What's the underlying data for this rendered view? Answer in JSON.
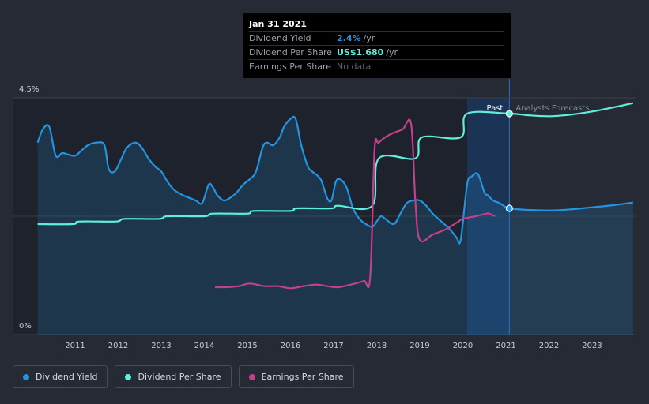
{
  "tooltip": {
    "date": "Jan 31 2021",
    "rows": [
      {
        "label": "Dividend Yield",
        "value": "2.4%",
        "unit": "/yr"
      },
      {
        "label": "Dividend Per Share",
        "value": "US$1.680",
        "unit": "/yr"
      },
      {
        "label": "Earnings Per Share",
        "value": "No data",
        "unit": ""
      }
    ]
  },
  "legend": [
    {
      "label": "Dividend Yield",
      "color": "#2394df"
    },
    {
      "label": "Dividend Per Share",
      "color": "#5ef0dc"
    },
    {
      "label": "Earnings Per Share",
      "color": "#c2418b"
    }
  ],
  "chart_data": {
    "type": "line",
    "ylim": [
      0,
      4.5
    ],
    "y_tick_labels": [
      "4.5%",
      "0%"
    ],
    "x_tick_labels": [
      "2011",
      "2012",
      "2013",
      "2014",
      "2015",
      "2016",
      "2017",
      "2018",
      "2019",
      "2020",
      "2021",
      "2022",
      "2023"
    ],
    "xlim": [
      2010.13,
      2023.95
    ],
    "past_label": "Past",
    "forecast_label": "Analysts Forecasts",
    "forecast_start": 2021.08,
    "shaded_region": [
      2020.1,
      2021.08
    ],
    "series": [
      {
        "name": "Dividend Yield",
        "color": "#2394df",
        "unit": "%",
        "x": [
          2010.13,
          2010.25,
          2010.4,
          2010.55,
          2010.7,
          2010.85,
          2011.0,
          2011.15,
          2011.3,
          2011.5,
          2011.68,
          2011.78,
          2011.92,
          2012.05,
          2012.2,
          2012.4,
          2012.55,
          2012.7,
          2012.85,
          2013.0,
          2013.15,
          2013.3,
          2013.5,
          2013.65,
          2013.8,
          2013.95,
          2014.1,
          2014.2,
          2014.3,
          2014.45,
          2014.6,
          2014.75,
          2014.9,
          2015.05,
          2015.2,
          2015.35,
          2015.45,
          2015.6,
          2015.75,
          2015.85,
          2016.0,
          2016.12,
          2016.25,
          2016.4,
          2016.5,
          2016.7,
          2016.85,
          2016.95,
          2017.05,
          2017.15,
          2017.3,
          2017.45,
          2017.6,
          2017.75,
          2017.9,
          2018.0,
          2018.1,
          2018.2,
          2018.4,
          2018.55,
          2018.7,
          2018.85,
          2019.0,
          2019.15,
          2019.3,
          2019.5,
          2019.7,
          2019.85,
          2019.95,
          2020.1,
          2020.2,
          2020.35,
          2020.5,
          2020.58,
          2020.7,
          2020.85,
          2021.0,
          2021.08,
          2021.5,
          2022.0,
          2022.5,
          2023.0,
          2023.5,
          2023.95
        ],
        "y": [
          3.65,
          3.9,
          3.95,
          3.4,
          3.45,
          3.42,
          3.4,
          3.5,
          3.6,
          3.65,
          3.6,
          3.15,
          3.1,
          3.3,
          3.55,
          3.65,
          3.55,
          3.35,
          3.2,
          3.1,
          2.9,
          2.75,
          2.65,
          2.6,
          2.55,
          2.5,
          2.85,
          2.8,
          2.65,
          2.55,
          2.6,
          2.7,
          2.85,
          2.95,
          3.1,
          3.55,
          3.65,
          3.6,
          3.75,
          3.95,
          4.1,
          4.1,
          3.6,
          3.2,
          3.1,
          2.95,
          2.6,
          2.55,
          2.9,
          2.95,
          2.8,
          2.4,
          2.2,
          2.1,
          2.05,
          2.15,
          2.25,
          2.2,
          2.1,
          2.3,
          2.5,
          2.55,
          2.55,
          2.45,
          2.3,
          2.15,
          2.0,
          1.85,
          1.8,
          2.85,
          3.0,
          3.05,
          2.7,
          2.65,
          2.55,
          2.5,
          2.42,
          2.4,
          2.37,
          2.36,
          2.38,
          2.42,
          2.46,
          2.51
        ]
      },
      {
        "name": "Dividend Per Share",
        "color": "#5ef0dc",
        "unit": "US$",
        "x": [
          2010.13,
          2010.95,
          2011.1,
          2011.95,
          2012.15,
          2012.95,
          2013.15,
          2014.0,
          2014.2,
          2015.0,
          2015.15,
          2016.0,
          2016.15,
          2016.95,
          2017.1,
          2017.9,
          2018.05,
          2018.9,
          2019.05,
          2019.95,
          2020.1,
          2021.08,
          2021.5,
          2022.0,
          2022.5,
          2023.0,
          2023.5,
          2023.95
        ],
        "y": [
          2.1,
          2.1,
          2.15,
          2.15,
          2.2,
          2.2,
          2.25,
          2.25,
          2.3,
          2.3,
          2.35,
          2.35,
          2.4,
          2.4,
          2.45,
          2.45,
          3.35,
          3.35,
          3.75,
          3.75,
          4.2,
          4.2,
          4.17,
          4.15,
          4.18,
          4.24,
          4.32,
          4.4
        ]
      },
      {
        "name": "Earnings Per Share",
        "color": "#c2418b",
        "unit": "US$",
        "x": [
          2014.25,
          2014.5,
          2014.8,
          2015.05,
          2015.4,
          2015.7,
          2016.0,
          2016.3,
          2016.6,
          2016.85,
          2017.1,
          2017.4,
          2017.7,
          2017.85,
          2017.95,
          2018.05,
          2018.3,
          2018.6,
          2018.8,
          2018.9,
          2019.0,
          2019.3,
          2019.6,
          2019.9,
          2020.0,
          2020.3,
          2020.55,
          2020.6,
          2020.75
        ],
        "y": [
          0.9,
          0.9,
          0.92,
          0.97,
          0.92,
          0.92,
          0.88,
          0.92,
          0.95,
          0.92,
          0.9,
          0.95,
          1.02,
          1.1,
          3.5,
          3.65,
          3.8,
          3.9,
          4.0,
          2.5,
          1.8,
          1.9,
          2.0,
          2.15,
          2.2,
          2.25,
          2.3,
          2.3,
          2.25
        ]
      }
    ]
  }
}
